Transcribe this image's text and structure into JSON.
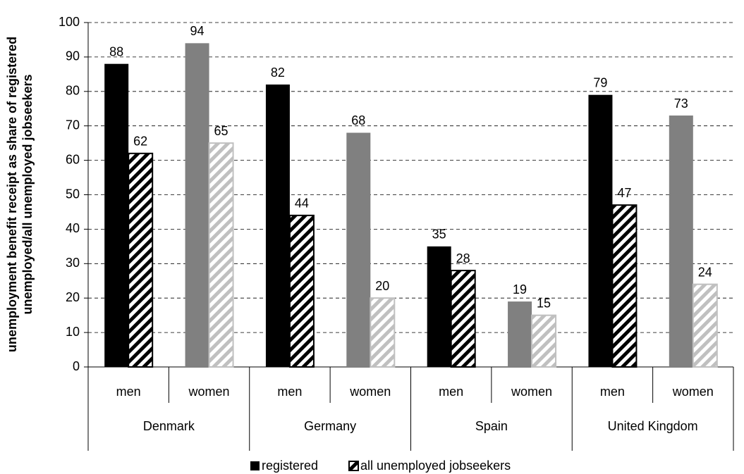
{
  "chart_data": {
    "type": "bar",
    "ylabel": [
      "unemployment benefit receipt as share of registered",
      "unemployed/all unemployed jobseekers"
    ],
    "groups": [
      "Denmark",
      "Germany",
      "Spain",
      "United Kingdom"
    ],
    "categories": [
      "men",
      "women",
      "men",
      "women",
      "men",
      "women",
      "men",
      "women"
    ],
    "series": [
      {
        "name": "registered",
        "pattern": "solid",
        "colors": [
          "#000000",
          "#808080",
          "#000000",
          "#808080",
          "#000000",
          "#808080",
          "#000000",
          "#808080"
        ],
        "values": [
          88,
          94,
          82,
          68,
          35,
          19,
          79,
          73
        ]
      },
      {
        "name": "all unemployed jobseekers",
        "pattern": "hatch",
        "colors": [
          "#000000",
          "#c0c0c0",
          "#000000",
          "#c0c0c0",
          "#000000",
          "#c0c0c0",
          "#000000",
          "#c0c0c0"
        ],
        "values": [
          62,
          65,
          44,
          20,
          28,
          15,
          47,
          24
        ]
      }
    ],
    "ylim": [
      0,
      100
    ],
    "yticks": [
      0,
      10,
      20,
      30,
      40,
      50,
      60,
      70,
      80,
      90,
      100
    ],
    "grid": true,
    "legend": "bottom"
  }
}
